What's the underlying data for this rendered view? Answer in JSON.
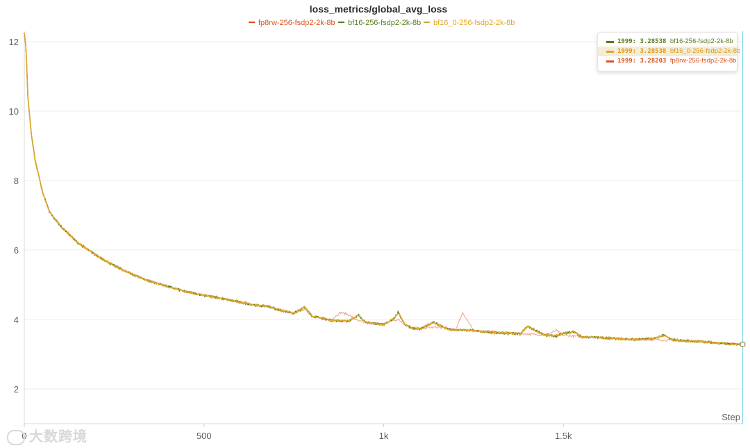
{
  "chart_data": {
    "type": "line",
    "title": "loss_metrics/global_avg_loss",
    "xlabel": "Step",
    "ylabel": "",
    "xlim": [
      0,
      2000
    ],
    "ylim": [
      1,
      12.3
    ],
    "x_ticks": [
      0,
      500,
      1000,
      1500
    ],
    "x_tick_labels": [
      "0",
      "500",
      "1k",
      "1.5k"
    ],
    "y_ticks": [
      2,
      4,
      6,
      8,
      10,
      12
    ],
    "legend_position": "top",
    "grid": true,
    "series": [
      {
        "name": "fp8rw-256-fsdp2-2k-8b",
        "color": "#d9531e",
        "x": [
          0,
          5,
          10,
          20,
          30,
          50,
          70,
          100,
          150,
          200,
          250,
          300,
          350,
          400,
          450,
          500,
          550,
          600,
          650,
          680,
          700,
          750,
          780,
          800,
          850,
          880,
          900,
          930,
          950,
          1000,
          1020,
          1040,
          1060,
          1080,
          1100,
          1150,
          1200,
          1220,
          1250,
          1300,
          1350,
          1380,
          1400,
          1450,
          1480,
          1500,
          1550,
          1600,
          1650,
          1700,
          1750,
          1800,
          1850,
          1900,
          1950,
          1999
        ],
        "values": [
          12.25,
          11.8,
          10.4,
          9.3,
          8.6,
          7.7,
          7.1,
          6.7,
          6.2,
          5.85,
          5.55,
          5.3,
          5.1,
          4.95,
          4.8,
          4.7,
          4.6,
          4.5,
          4.4,
          4.38,
          4.3,
          4.18,
          4.3,
          4.1,
          3.98,
          4.2,
          4.15,
          3.95,
          3.92,
          3.88,
          3.95,
          4.0,
          3.85,
          3.78,
          3.75,
          3.78,
          3.7,
          4.2,
          3.68,
          3.66,
          3.62,
          3.6,
          3.58,
          3.55,
          3.68,
          3.55,
          3.5,
          3.48,
          3.45,
          3.43,
          3.42,
          3.4,
          3.38,
          3.36,
          3.31,
          3.28203
        ]
      },
      {
        "name": "bf16-256-fsdp2-2k-8b",
        "color": "#5b7a1f",
        "x": [
          0,
          5,
          10,
          20,
          30,
          50,
          70,
          100,
          150,
          200,
          250,
          300,
          350,
          400,
          450,
          500,
          550,
          600,
          650,
          680,
          700,
          750,
          780,
          800,
          850,
          900,
          930,
          950,
          1000,
          1030,
          1040,
          1060,
          1080,
          1100,
          1140,
          1180,
          1200,
          1250,
          1300,
          1350,
          1380,
          1400,
          1450,
          1480,
          1500,
          1530,
          1550,
          1600,
          1650,
          1700,
          1750,
          1780,
          1800,
          1850,
          1900,
          1950,
          1999
        ],
        "values": [
          12.25,
          11.8,
          10.4,
          9.3,
          8.6,
          7.7,
          7.1,
          6.7,
          6.2,
          5.85,
          5.55,
          5.3,
          5.1,
          4.95,
          4.8,
          4.7,
          4.6,
          4.5,
          4.4,
          4.38,
          4.3,
          4.18,
          4.35,
          4.1,
          3.98,
          3.95,
          4.12,
          3.92,
          3.85,
          4.05,
          4.2,
          3.85,
          3.75,
          3.72,
          3.92,
          3.72,
          3.7,
          3.68,
          3.62,
          3.6,
          3.58,
          3.8,
          3.55,
          3.52,
          3.6,
          3.65,
          3.5,
          3.48,
          3.45,
          3.42,
          3.45,
          3.55,
          3.42,
          3.38,
          3.35,
          3.3,
          3.28538
        ]
      },
      {
        "name": "bf16_0-256-fsdp2-2k-8b",
        "color": "#e0a526",
        "x": [
          0,
          5,
          10,
          20,
          30,
          50,
          70,
          100,
          150,
          200,
          250,
          300,
          350,
          400,
          450,
          500,
          550,
          600,
          650,
          680,
          700,
          750,
          780,
          800,
          850,
          900,
          930,
          950,
          1000,
          1030,
          1040,
          1060,
          1080,
          1100,
          1140,
          1180,
          1200,
          1250,
          1300,
          1350,
          1380,
          1400,
          1450,
          1480,
          1500,
          1530,
          1550,
          1600,
          1650,
          1700,
          1750,
          1780,
          1800,
          1850,
          1900,
          1950,
          1999
        ],
        "values": [
          12.25,
          11.8,
          10.4,
          9.3,
          8.6,
          7.7,
          7.1,
          6.7,
          6.2,
          5.85,
          5.55,
          5.3,
          5.1,
          4.95,
          4.8,
          4.7,
          4.6,
          4.5,
          4.4,
          4.38,
          4.3,
          4.18,
          4.35,
          4.1,
          3.98,
          3.95,
          4.12,
          3.92,
          3.85,
          4.05,
          4.2,
          3.85,
          3.75,
          3.72,
          3.92,
          3.72,
          3.7,
          3.68,
          3.62,
          3.6,
          3.58,
          3.8,
          3.55,
          3.52,
          3.6,
          3.65,
          3.5,
          3.48,
          3.45,
          3.42,
          3.45,
          3.55,
          3.42,
          3.38,
          3.35,
          3.3,
          3.28538
        ]
      }
    ]
  },
  "tooltip": {
    "rows": [
      {
        "step": "1999",
        "value": "3.28538",
        "name": "bf16-256-fsdp2-2k-8b",
        "color": "#5b7a1f",
        "text_color": "#5b7a1f",
        "highlight": false
      },
      {
        "step": "1999",
        "value": "3.28538",
        "name": "bf16_0-256-fsdp2-2k-8b",
        "color": "#e0a526",
        "text_color": "#d99a1b",
        "highlight": true
      },
      {
        "step": "1999",
        "value": "3.28203",
        "name": "fp8rw-256-fsdp2-2k-8b",
        "color": "#d9531e",
        "text_color": "#d9531e",
        "highlight": false
      }
    ]
  },
  "watermark": {
    "text": "大数跨境"
  },
  "colors": {
    "cursor": "#7fd3e8",
    "grid": "#eeeeee",
    "axis": "#d9d9d9"
  }
}
